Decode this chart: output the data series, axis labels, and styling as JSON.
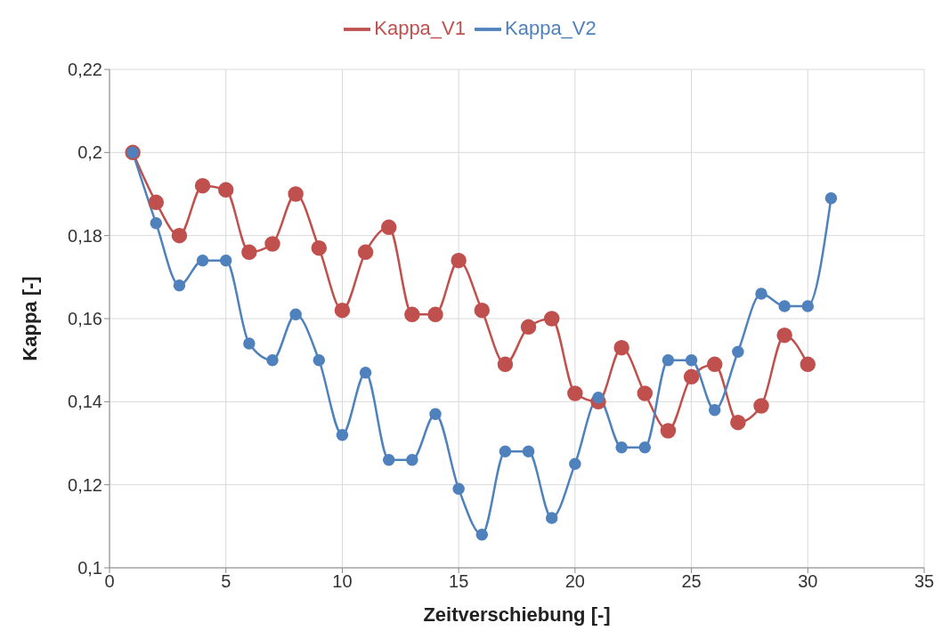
{
  "chart_data": {
    "type": "line",
    "xlabel": "Zeitverschiebung [-]",
    "ylabel": "Kappa [-]",
    "x": [
      1,
      2,
      3,
      4,
      5,
      6,
      7,
      8,
      9,
      10,
      11,
      12,
      13,
      14,
      15,
      16,
      17,
      18,
      19,
      20,
      21,
      22,
      23,
      24,
      25,
      26,
      27,
      28,
      29,
      30,
      31
    ],
    "series": [
      {
        "name": "Kappa_V1",
        "color": "#c0504d",
        "values": [
          0.2,
          0.188,
          0.18,
          0.192,
          0.191,
          0.176,
          0.178,
          0.19,
          0.177,
          0.162,
          0.176,
          0.182,
          0.161,
          0.161,
          0.174,
          0.162,
          0.149,
          0.158,
          0.16,
          0.142,
          0.14,
          0.153,
          0.142,
          0.133,
          0.146,
          0.149,
          0.135,
          0.139,
          0.156,
          0.149,
          null
        ]
      },
      {
        "name": "Kappa_V2",
        "color": "#4f81bd",
        "values": [
          0.2,
          0.183,
          0.168,
          0.174,
          0.174,
          0.154,
          0.15,
          0.161,
          0.15,
          0.132,
          0.147,
          0.126,
          0.126,
          0.137,
          0.119,
          0.108,
          0.128,
          0.128,
          0.112,
          0.125,
          0.141,
          0.129,
          0.129,
          0.15,
          0.15,
          0.138,
          0.152,
          0.166,
          0.163,
          0.163,
          0.189
        ]
      }
    ],
    "xlim": [
      0,
      35
    ],
    "xticks": [
      0,
      5,
      10,
      15,
      20,
      25,
      30,
      35
    ],
    "ylim": [
      0.1,
      0.22
    ],
    "yticks": [
      {
        "value": 0.1,
        "label": "0,1"
      },
      {
        "value": 0.12,
        "label": "0,12"
      },
      {
        "value": 0.14,
        "label": "0,14"
      },
      {
        "value": 0.16,
        "label": "0,16"
      },
      {
        "value": 0.18,
        "label": "0,18"
      },
      {
        "value": 0.2,
        "label": "0,2"
      },
      {
        "value": 0.22,
        "label": "0,22"
      }
    ],
    "grid": true,
    "legend": "top",
    "marker": "circle",
    "line_style": "solid"
  }
}
